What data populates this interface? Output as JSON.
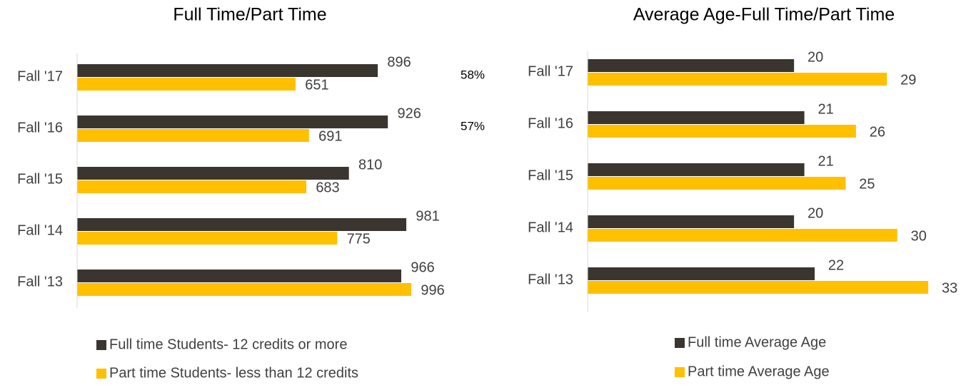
{
  "chart_data": [
    {
      "type": "bar",
      "orientation": "horizontal",
      "title": "Full Time/Part Time",
      "categories": [
        "Fall '17",
        "Fall '16",
        "Fall '15",
        "Fall '14",
        "Fall '13"
      ],
      "series": [
        {
          "name": "Full time Students- 12 credits or more",
          "color": "#3b3530",
          "values": [
            896,
            926,
            810,
            981,
            966
          ]
        },
        {
          "name": "Part time Students- less than 12 credits",
          "color": "#ffc000",
          "values": [
            651,
            691,
            683,
            775,
            996
          ]
        }
      ],
      "xlim": [
        0,
        1200
      ],
      "annotations": [
        "58%",
        "57%"
      ],
      "legend": "bottom"
    },
    {
      "type": "bar",
      "orientation": "horizontal",
      "title": "Average Age-Full Time/Part Time",
      "categories": [
        "Fall '17",
        "Fall '16",
        "Fall '15",
        "Fall '14",
        "Fall '13"
      ],
      "series": [
        {
          "name": "Full time Average Age",
          "color": "#3b3530",
          "values": [
            20,
            21,
            21,
            20,
            22
          ]
        },
        {
          "name": "Part time Average Age",
          "color": "#ffc000",
          "values": [
            29,
            26,
            25,
            30,
            33
          ]
        }
      ],
      "xlim": [
        0,
        35
      ],
      "legend": "bottom"
    }
  ]
}
